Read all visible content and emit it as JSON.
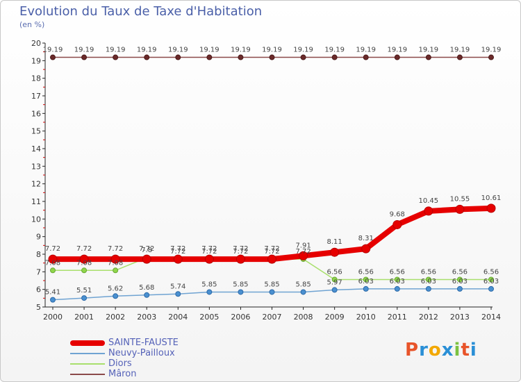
{
  "title": "Evolution du Taux de Taxe d'Habitation",
  "subtitle": "(en %)",
  "logo": "Proxiti",
  "chart_data": {
    "type": "line",
    "x": [
      2000,
      2001,
      2002,
      2003,
      2004,
      2005,
      2006,
      2007,
      2008,
      2009,
      2010,
      2011,
      2012,
      2013,
      2014
    ],
    "ylim": [
      5,
      20
    ],
    "yticks": [
      5,
      6,
      7,
      8,
      9,
      10,
      11,
      12,
      13,
      14,
      15,
      16,
      17,
      18,
      19,
      20
    ],
    "grid": false,
    "legend_position": "bottom-left",
    "series": [
      {
        "name": "SAINTE-FAUSTE",
        "color": "#e60000",
        "values": [
          7.72,
          7.72,
          7.72,
          7.72,
          7.72,
          7.72,
          7.72,
          7.72,
          7.91,
          8.11,
          8.31,
          9.68,
          10.45,
          10.55,
          10.61
        ],
        "labels": [
          "7.72",
          "7.72",
          "7.72",
          "7.72",
          "7.72",
          "7.72",
          "7.72",
          "7.72",
          "7.91",
          "8.11",
          "8.31",
          "9.68",
          "10.45",
          "10.55",
          "10.61"
        ]
      },
      {
        "name": "Neuvy-Pailloux",
        "color": "#6fa3d2",
        "values": [
          5.41,
          5.51,
          5.62,
          5.68,
          5.74,
          5.85,
          5.85,
          5.85,
          5.85,
          5.97,
          6.03,
          6.03,
          6.03,
          6.03,
          6.03
        ],
        "labels": [
          "5.41",
          "5.51",
          "5.62",
          "5.68",
          "5.74",
          "5.85",
          "5.85",
          "5.85",
          "5.85",
          "5.97",
          "6.03",
          "6.03",
          "6.03",
          "6.03",
          "6.03"
        ]
      },
      {
        "name": "Diors",
        "color": "#a8df6c",
        "values": [
          7.08,
          7.08,
          7.08,
          7.8,
          7.72,
          7.72,
          7.72,
          7.72,
          7.72,
          6.56,
          6.56,
          6.56,
          6.56,
          6.56,
          6.56
        ],
        "labels": [
          "7.08",
          "7.08",
          "7.08",
          "7.8",
          "7.72",
          "7.72",
          "7.72",
          "7.72",
          "7.72",
          "6.56",
          "6.56",
          "6.56",
          "6.56",
          "6.56",
          "6.56"
        ]
      },
      {
        "name": "Mâron",
        "color": "#8b4a4a",
        "values": [
          19.19,
          19.19,
          19.19,
          19.19,
          19.19,
          19.19,
          19.19,
          19.19,
          19.19,
          19.19,
          19.19,
          19.19,
          19.19,
          19.19,
          19.19
        ],
        "labels": [
          "19.19",
          "19.19",
          "19.19",
          "19.19",
          "19.19",
          "19.19",
          "19.19",
          "19.19",
          "19.19",
          "19.19",
          "19.19",
          "19.19",
          "19.19",
          "19.19",
          "19.19"
        ]
      }
    ]
  }
}
